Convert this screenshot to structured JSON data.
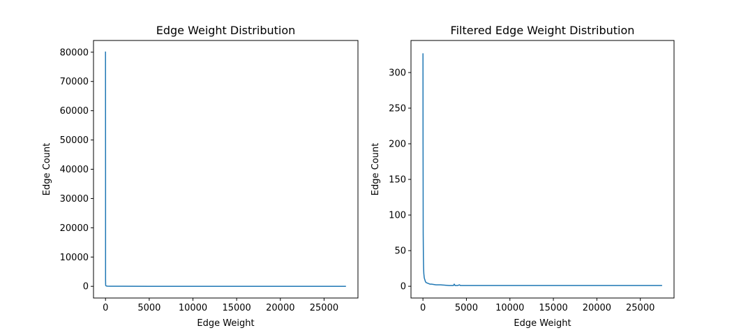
{
  "chart_data": [
    {
      "type": "line",
      "title": "Edge Weight Distribution",
      "xlabel": "Edge Weight",
      "ylabel": "Edge Count",
      "xlim": [
        -1375,
        28875
      ],
      "ylim": [
        -4000,
        84000
      ],
      "xticks": [
        0,
        5000,
        10000,
        15000,
        20000,
        25000
      ],
      "yticks": [
        0,
        10000,
        20000,
        30000,
        40000,
        50000,
        60000,
        70000,
        80000
      ],
      "color": "#1f77b4",
      "series": [
        {
          "x": [
            1,
            2,
            3,
            5,
            10,
            20,
            50,
            100,
            200,
            500,
            1000,
            2000,
            5000,
            10000,
            20000,
            27500
          ],
          "y": [
            80200,
            40000,
            10000,
            2500,
            700,
            300,
            150,
            90,
            60,
            40,
            30,
            25,
            15,
            10,
            5,
            2
          ]
        }
      ]
    },
    {
      "type": "line",
      "title": "Filtered Edge Weight Distribution",
      "xlabel": "Edge Weight",
      "ylabel": "Edge Count",
      "xlim": [
        -1375,
        28875
      ],
      "ylim": [
        -16.5,
        345
      ],
      "xticks": [
        0,
        5000,
        10000,
        15000,
        20000,
        25000
      ],
      "yticks": [
        0,
        50,
        100,
        150,
        200,
        250,
        300
      ],
      "color": "#1f77b4",
      "series": [
        {
          "x": [
            5,
            10,
            20,
            30,
            50,
            80,
            100,
            150,
            200,
            300,
            400,
            600,
            800,
            1000,
            1500,
            2000,
            3000,
            3500,
            3600,
            3700,
            4000,
            4200,
            4300,
            4500,
            5000,
            10000,
            20000,
            27500
          ],
          "y": [
            327,
            200,
            150,
            75,
            40,
            25,
            18,
            12,
            10,
            6,
            5,
            4,
            3,
            3,
            2,
            2,
            1,
            1,
            3,
            1,
            1,
            2,
            1,
            1,
            1,
            1,
            1,
            1
          ]
        }
      ]
    }
  ]
}
